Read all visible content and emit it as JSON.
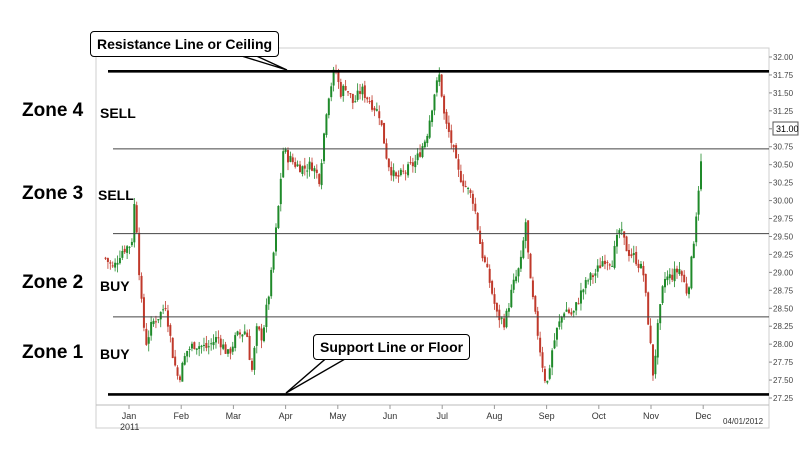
{
  "chart_data": {
    "type": "candlestick",
    "y_axis": {
      "ylim": [
        27.25,
        32.0
      ],
      "ticks": [
        "32.00",
        "31.75",
        "31.50",
        "31.25",
        "31.00",
        "30.75",
        "30.50",
        "30.25",
        "30.00",
        "29.75",
        "29.50",
        "29.25",
        "29.00",
        "28.75",
        "28.50",
        "28.25",
        "28.00",
        "27.75",
        "27.50",
        "27.25"
      ],
      "current_price": "31.00",
      "position": "right"
    },
    "x_axis": {
      "months": [
        "Jan",
        "Feb",
        "Mar",
        "Apr",
        "May",
        "Jun",
        "Jul",
        "Aug",
        "Sep",
        "Oct",
        "Nov",
        "Dec"
      ],
      "year": "2011",
      "end_date": "04/01/2012"
    },
    "horizontal_lines": [
      {
        "value": 31.8,
        "style": "thick",
        "label": "Resistance Line or Ceiling"
      },
      {
        "value": 30.72,
        "style": "thin"
      },
      {
        "value": 29.54,
        "style": "thin"
      },
      {
        "value": 28.38,
        "style": "thin"
      },
      {
        "value": 27.3,
        "style": "thick",
        "label": "Support Line or Floor"
      }
    ],
    "zones": [
      {
        "name": "Zone 4",
        "action": "SELL"
      },
      {
        "name": "Zone 3",
        "action": "SELL"
      },
      {
        "name": "Zone 2",
        "action": "BUY"
      },
      {
        "name": "Zone 1",
        "action": "BUY"
      }
    ],
    "close_path": [
      {
        "m": -0.45,
        "v": 29.2
      },
      {
        "m": -0.3,
        "v": 29.05
      },
      {
        "m": -0.15,
        "v": 29.3
      },
      {
        "m": 0.05,
        "v": 29.4
      },
      {
        "m": 0.1,
        "v": 29.95
      },
      {
        "m": 0.15,
        "v": 29.6
      },
      {
        "m": 0.22,
        "v": 28.7
      },
      {
        "m": 0.32,
        "v": 28.0
      },
      {
        "m": 0.45,
        "v": 28.3
      },
      {
        "m": 0.58,
        "v": 28.4
      },
      {
        "m": 0.7,
        "v": 28.55
      },
      {
        "m": 0.85,
        "v": 27.8
      },
      {
        "m": 0.95,
        "v": 27.5
      },
      {
        "m": 1.1,
        "v": 27.9
      },
      {
        "m": 1.25,
        "v": 28.0
      },
      {
        "m": 1.5,
        "v": 27.95
      },
      {
        "m": 1.7,
        "v": 28.1
      },
      {
        "m": 1.9,
        "v": 27.85
      },
      {
        "m": 2.05,
        "v": 28.1
      },
      {
        "m": 2.25,
        "v": 28.2
      },
      {
        "m": 2.35,
        "v": 27.6
      },
      {
        "m": 2.45,
        "v": 28.2
      },
      {
        "m": 2.55,
        "v": 28.1
      },
      {
        "m": 2.7,
        "v": 28.8
      },
      {
        "m": 2.85,
        "v": 29.8
      },
      {
        "m": 2.95,
        "v": 30.7
      },
      {
        "m": 3.05,
        "v": 30.6
      },
      {
        "m": 3.2,
        "v": 30.5
      },
      {
        "m": 3.35,
        "v": 30.45
      },
      {
        "m": 3.5,
        "v": 30.5
      },
      {
        "m": 3.65,
        "v": 30.3
      },
      {
        "m": 3.8,
        "v": 31.4
      },
      {
        "m": 3.95,
        "v": 31.85
      },
      {
        "m": 4.05,
        "v": 31.5
      },
      {
        "m": 4.15,
        "v": 31.6
      },
      {
        "m": 4.3,
        "v": 31.35
      },
      {
        "m": 4.45,
        "v": 31.55
      },
      {
        "m": 4.6,
        "v": 31.4
      },
      {
        "m": 4.8,
        "v": 31.2
      },
      {
        "m": 4.95,
        "v": 30.55
      },
      {
        "m": 5.1,
        "v": 30.3
      },
      {
        "m": 5.3,
        "v": 30.4
      },
      {
        "m": 5.5,
        "v": 30.55
      },
      {
        "m": 5.7,
        "v": 30.9
      },
      {
        "m": 5.85,
        "v": 31.5
      },
      {
        "m": 5.95,
        "v": 31.75
      },
      {
        "m": 6.05,
        "v": 31.1
      },
      {
        "m": 6.15,
        "v": 30.9
      },
      {
        "m": 6.3,
        "v": 30.4
      },
      {
        "m": 6.45,
        "v": 30.2
      },
      {
        "m": 6.6,
        "v": 30.0
      },
      {
        "m": 6.75,
        "v": 29.3
      },
      {
        "m": 6.9,
        "v": 28.9
      },
      {
        "m": 7.05,
        "v": 28.4
      },
      {
        "m": 7.2,
        "v": 28.3
      },
      {
        "m": 7.35,
        "v": 28.8
      },
      {
        "m": 7.5,
        "v": 29.1
      },
      {
        "m": 7.6,
        "v": 29.7
      },
      {
        "m": 7.68,
        "v": 28.9
      },
      {
        "m": 7.78,
        "v": 28.4
      },
      {
        "m": 7.9,
        "v": 27.8
      },
      {
        "m": 8.0,
        "v": 27.4
      },
      {
        "m": 8.1,
        "v": 27.9
      },
      {
        "m": 8.2,
        "v": 28.2
      },
      {
        "m": 8.35,
        "v": 28.5
      },
      {
        "m": 8.5,
        "v": 28.4
      },
      {
        "m": 8.65,
        "v": 28.7
      },
      {
        "m": 8.8,
        "v": 28.9
      },
      {
        "m": 8.95,
        "v": 29.0
      },
      {
        "m": 9.1,
        "v": 29.2
      },
      {
        "m": 9.25,
        "v": 29.15
      },
      {
        "m": 9.4,
        "v": 29.6
      },
      {
        "m": 9.55,
        "v": 29.3
      },
      {
        "m": 9.7,
        "v": 29.2
      },
      {
        "m": 9.85,
        "v": 29.0
      },
      {
        "m": 9.95,
        "v": 28.3
      },
      {
        "m": 10.05,
        "v": 27.5
      },
      {
        "m": 10.1,
        "v": 28.05
      },
      {
        "m": 10.25,
        "v": 28.9
      },
      {
        "m": 10.4,
        "v": 28.95
      },
      {
        "m": 10.55,
        "v": 29.05
      },
      {
        "m": 10.7,
        "v": 28.7
      },
      {
        "m": 10.8,
        "v": 29.3
      },
      {
        "m": 10.9,
        "v": 30.1
      },
      {
        "m": 10.97,
        "v": 30.6
      }
    ]
  }
}
